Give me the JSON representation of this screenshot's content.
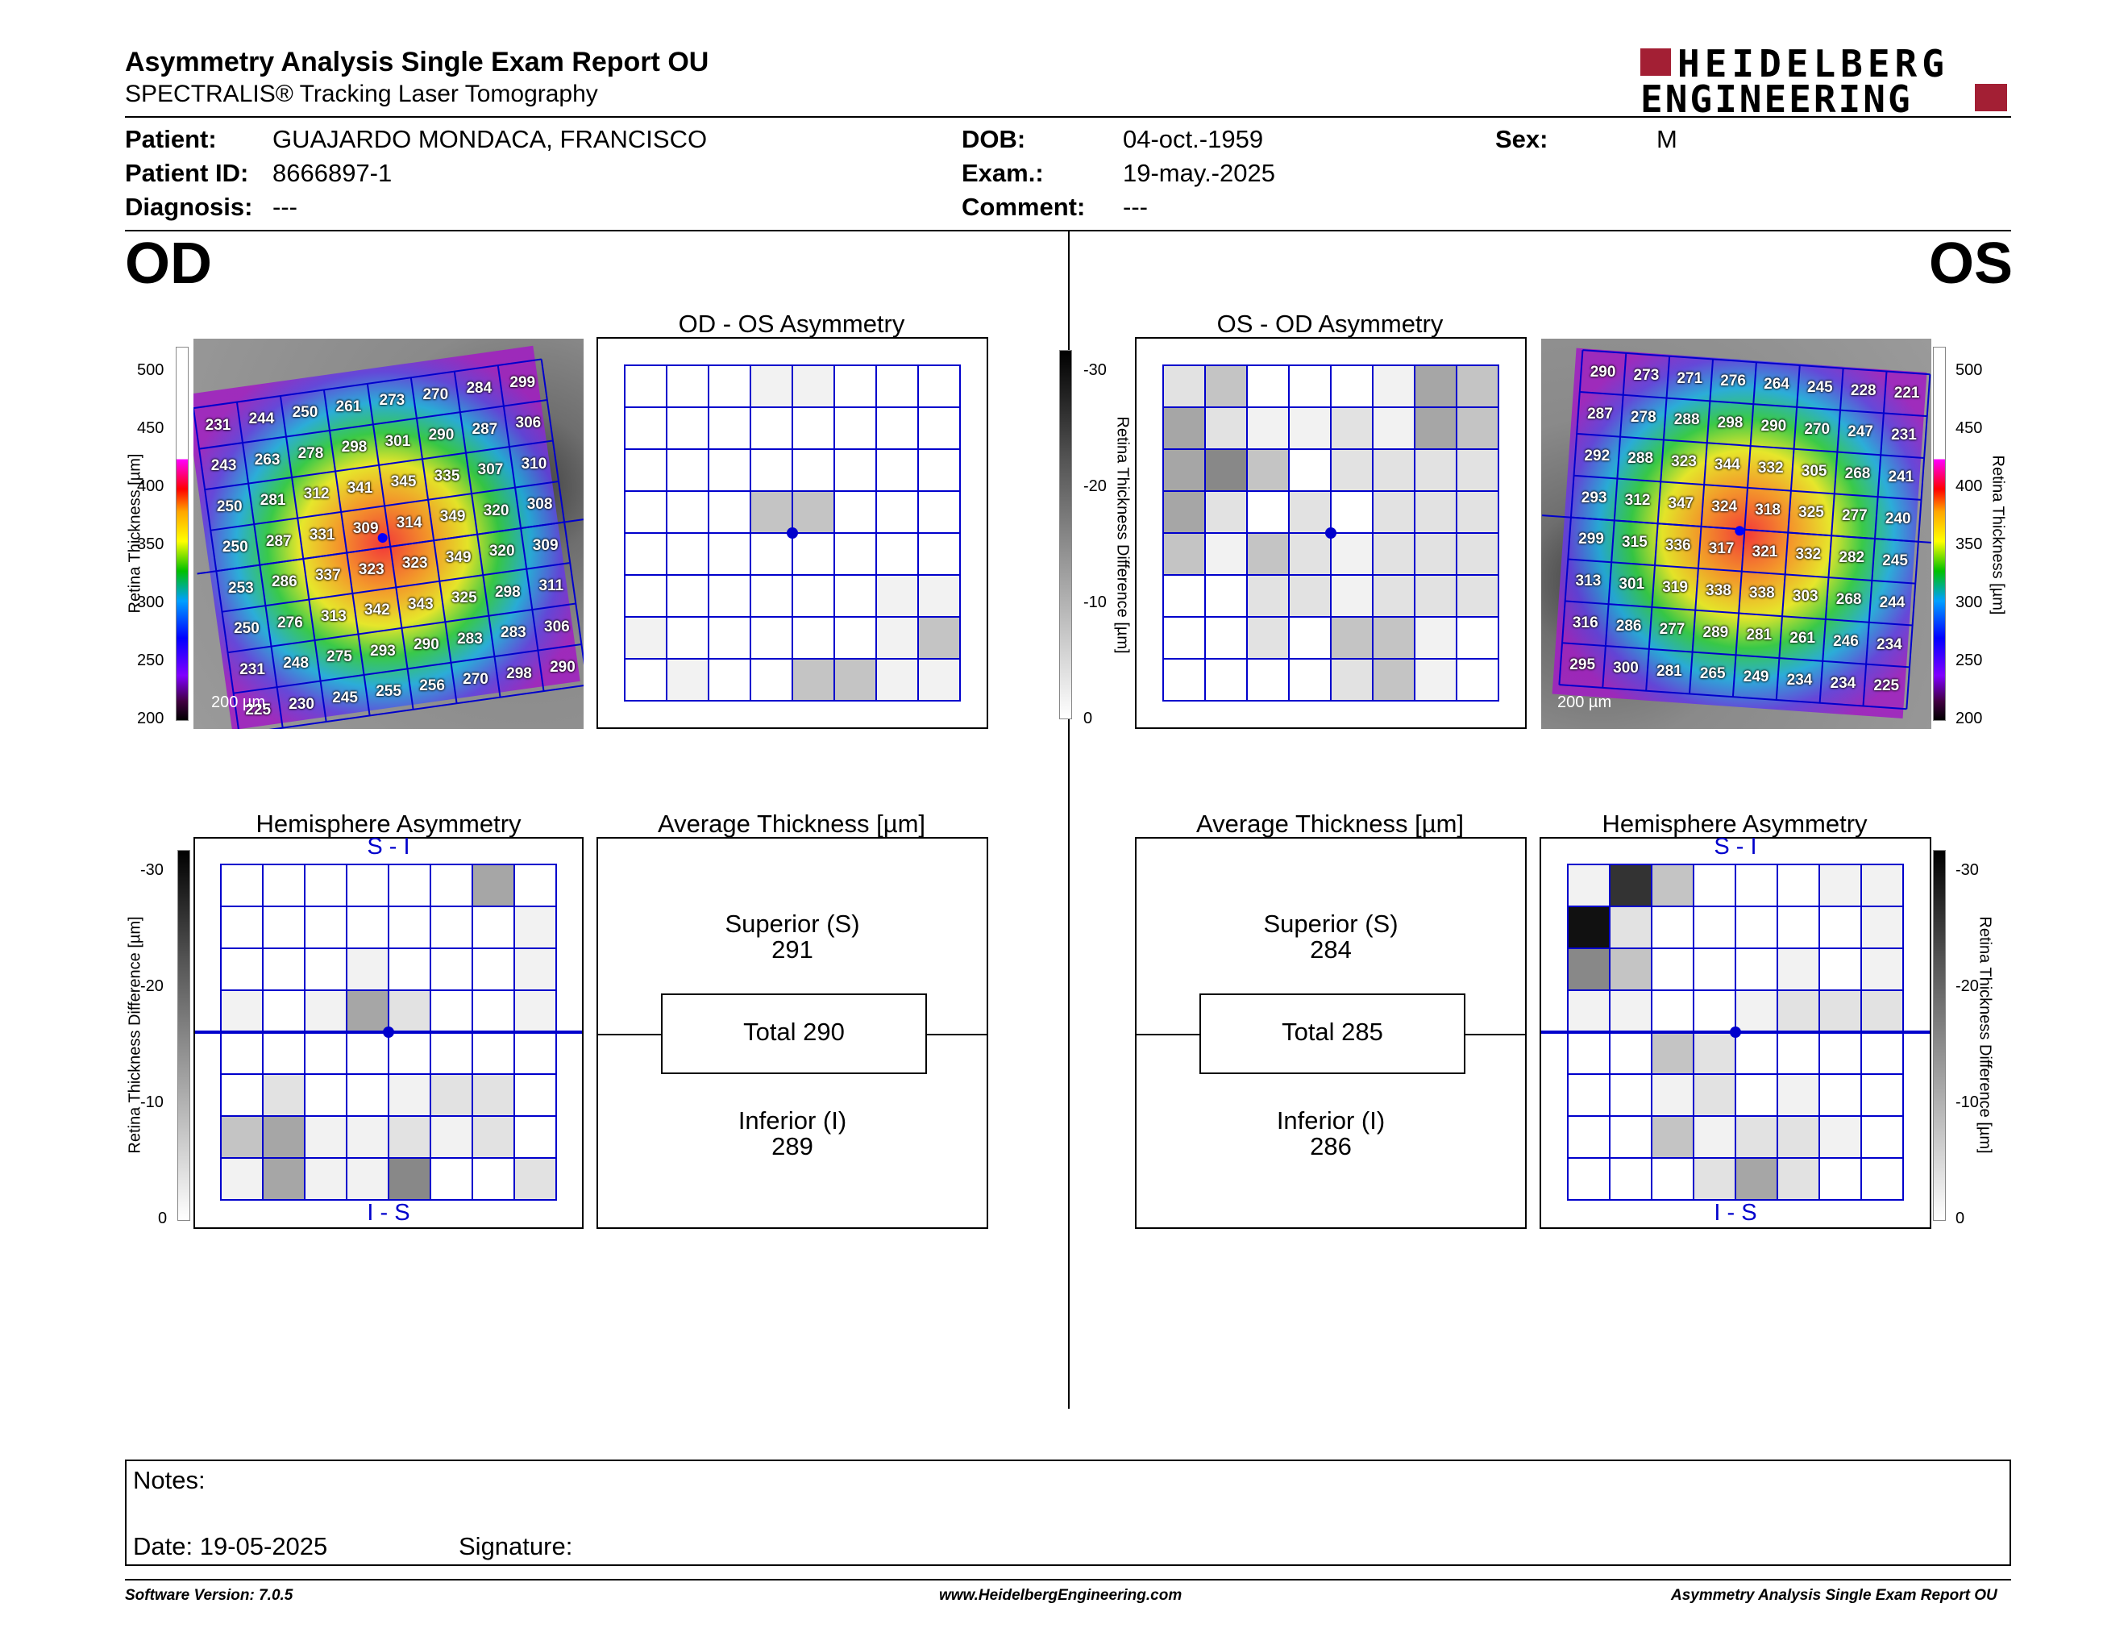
{
  "header": {
    "title": "Asymmetry Analysis Single Exam Report OU",
    "subtitle": "SPECTRALIS® Tracking Laser Tomography",
    "logo_line1": "HEIDELBERG",
    "logo_line2": "ENGINEERING"
  },
  "patient": {
    "patient_label": "Patient:",
    "patient_value": "GUAJARDO MONDACA, FRANCISCO",
    "id_label": "Patient ID:",
    "id_value": "8666897-1",
    "diagnosis_label": "Diagnosis:",
    "diagnosis_value": "---",
    "dob_label": "DOB:",
    "dob_value": "04-oct.-1959",
    "exam_label": "Exam.:",
    "exam_value": "19-may.-2025",
    "comment_label": "Comment:",
    "comment_value": "---",
    "sex_label": "Sex:",
    "sex_value": "M"
  },
  "od": {
    "eye_label": "OD",
    "asym_title": "OD - OS Asymmetry",
    "hemi_title": "Hemisphere Asymmetry",
    "avg_title": "Average Thickness [µm]",
    "superior_label": "Superior (S)",
    "superior_value": "291",
    "total_label": "Total 290",
    "inferior_label": "Inferior (I)",
    "inferior_value": "289",
    "scale_bar": "200 µm",
    "thickness": [
      [
        231,
        244,
        250,
        261,
        273,
        270,
        284,
        299
      ],
      [
        243,
        263,
        278,
        298,
        301,
        290,
        287,
        306
      ],
      [
        250,
        281,
        312,
        341,
        345,
        335,
        307,
        310
      ],
      [
        250,
        287,
        331,
        309,
        314,
        349,
        320,
        308
      ],
      [
        253,
        286,
        337,
        323,
        323,
        349,
        320,
        309
      ],
      [
        250,
        276,
        313,
        342,
        343,
        325,
        298,
        311
      ],
      [
        231,
        248,
        275,
        293,
        290,
        283,
        283,
        306
      ],
      [
        225,
        230,
        245,
        255,
        256,
        270,
        298,
        290
      ]
    ],
    "asym_gray": [
      [
        0,
        0,
        0,
        1,
        1,
        0,
        0,
        0
      ],
      [
        0,
        0,
        0,
        0,
        0,
        0,
        0,
        0
      ],
      [
        0,
        0,
        0,
        0,
        0,
        0,
        0,
        0
      ],
      [
        0,
        0,
        0,
        3,
        3,
        0,
        0,
        0
      ],
      [
        0,
        0,
        0,
        0,
        0,
        0,
        0,
        0
      ],
      [
        0,
        0,
        0,
        0,
        0,
        0,
        1,
        1
      ],
      [
        1,
        0,
        0,
        0,
        0,
        0,
        1,
        3
      ],
      [
        0,
        1,
        0,
        0,
        3,
        3,
        1,
        1
      ]
    ],
    "hemi_gray": [
      [
        0,
        0,
        0,
        0,
        0,
        0,
        4,
        0
      ],
      [
        0,
        0,
        0,
        0,
        0,
        0,
        0,
        1
      ],
      [
        0,
        0,
        0,
        1,
        0,
        0,
        0,
        1
      ],
      [
        1,
        0,
        1,
        4,
        2,
        0,
        0,
        1
      ],
      [
        0,
        0,
        0,
        0,
        0,
        0,
        0,
        0
      ],
      [
        0,
        2,
        0,
        0,
        1,
        2,
        2,
        0
      ],
      [
        3,
        4,
        1,
        1,
        2,
        1,
        2,
        0
      ],
      [
        1,
        4,
        1,
        1,
        5,
        0,
        0,
        2
      ]
    ]
  },
  "os": {
    "eye_label": "OS",
    "asym_title": "OS - OD Asymmetry",
    "hemi_title": "Hemisphere Asymmetry",
    "avg_title": "Average Thickness [µm]",
    "superior_label": "Superior (S)",
    "superior_value": "284",
    "total_label": "Total 285",
    "inferior_label": "Inferior (I)",
    "inferior_value": "286",
    "scale_bar": "200 µm",
    "thickness": [
      [
        290,
        273,
        271,
        276,
        264,
        245,
        228,
        221
      ],
      [
        287,
        278,
        288,
        298,
        290,
        270,
        247,
        231
      ],
      [
        292,
        288,
        323,
        344,
        332,
        305,
        268,
        241
      ],
      [
        293,
        312,
        347,
        324,
        318,
        325,
        277,
        240
      ],
      [
        299,
        315,
        336,
        317,
        321,
        332,
        282,
        245
      ],
      [
        313,
        301,
        319,
        338,
        338,
        303,
        268,
        244
      ],
      [
        316,
        286,
        277,
        289,
        281,
        261,
        246,
        234
      ],
      [
        295,
        300,
        281,
        265,
        249,
        234,
        234,
        225
      ]
    ],
    "asym_gray": [
      [
        2,
        3,
        0,
        0,
        0,
        1,
        4,
        3
      ],
      [
        4,
        2,
        1,
        1,
        2,
        1,
        4,
        3
      ],
      [
        4,
        5,
        3,
        0,
        2,
        2,
        2,
        2
      ],
      [
        4,
        2,
        0,
        2,
        0,
        2,
        2,
        2
      ],
      [
        3,
        1,
        3,
        2,
        1,
        2,
        2,
        2
      ],
      [
        0,
        0,
        2,
        2,
        1,
        2,
        2,
        2
      ],
      [
        0,
        0,
        2,
        0,
        3,
        3,
        1,
        0
      ],
      [
        0,
        0,
        0,
        0,
        2,
        3,
        1,
        0
      ]
    ],
    "hemi_gray": [
      [
        1,
        7,
        3,
        0,
        0,
        0,
        1,
        1
      ],
      [
        8,
        2,
        0,
        0,
        0,
        0,
        0,
        1
      ],
      [
        5,
        3,
        0,
        0,
        0,
        1,
        0,
        1
      ],
      [
        1,
        1,
        0,
        0,
        1,
        2,
        2,
        2
      ],
      [
        0,
        0,
        3,
        2,
        0,
        0,
        0,
        0
      ],
      [
        0,
        0,
        1,
        2,
        0,
        1,
        0,
        0
      ],
      [
        0,
        0,
        3,
        1,
        2,
        2,
        1,
        0
      ],
      [
        0,
        0,
        0,
        2,
        4,
        2,
        0,
        0
      ]
    ]
  },
  "axes": {
    "thickness_label": "Retina Thickness [µm]",
    "thickness_label_left": "Retina Thickness [µm]",
    "thickness_ticks": [
      "500",
      "450",
      "400",
      "350",
      "300",
      "250",
      "200"
    ],
    "diff_label": "Retina Thickness Difference [µm]",
    "diff_ticks": [
      "-30",
      "-20",
      "-10",
      "0"
    ],
    "hemi_top": "S - I",
    "hemi_bottom": "I - S"
  },
  "notes": {
    "notes_label": "Notes:",
    "date_label": "Date: 19-05-2025",
    "signature_label": "Signature:"
  },
  "footer": {
    "version": "Software Version: 7.0.5",
    "url": "www.HeidelbergEngineering.com",
    "report": "Asymmetry Analysis Single Exam Report OU"
  },
  "colors": {
    "grid_blue": "#0000cc",
    "brand_red": "#a31f34"
  }
}
